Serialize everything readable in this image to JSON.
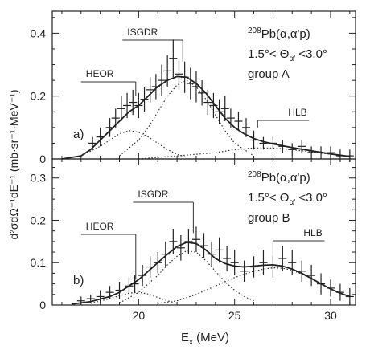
{
  "chart_data": [
    {
      "type": "line",
      "panel_label": "a)",
      "reaction": {
        "mass": "208",
        "text": "Pb(α,α'p)"
      },
      "angle_text": "1.5°< Θ",
      "angle_sub": "α'",
      "angle_tail": " <3.0°",
      "group_text": "group A",
      "xlim": [
        15.5,
        31.3
      ],
      "ylim": [
        0,
        0.47
      ],
      "x_ticks": [
        20,
        25,
        30
      ],
      "y_ticks": [
        0,
        0.2,
        0.4
      ],
      "y_tick_labels": [
        "0",
        "0.2",
        "0.4"
      ],
      "annotations": [
        {
          "label": "HEOR",
          "x": 19.85,
          "y_end": 0.2
        },
        {
          "label": "ISGDR",
          "x": 22.3,
          "y_end": 0.31
        },
        {
          "label": "HLB",
          "x": 26.2,
          "y_end": 0.1
        }
      ],
      "data_points": {
        "x": [
          17.6,
          18.0,
          18.5,
          18.8,
          19.1,
          19.4,
          19.7,
          20.0,
          20.3,
          20.6,
          20.9,
          21.2,
          21.5,
          21.8,
          22.1,
          22.4,
          22.7,
          23.0,
          23.3,
          23.6,
          23.9,
          24.2,
          24.5,
          24.8,
          25.2,
          25.6,
          26.0,
          26.5,
          27.0,
          27.5,
          28.0,
          28.5,
          29.0,
          29.5,
          30.0,
          30.5,
          31.0
        ],
        "y": [
          0.05,
          0.07,
          0.1,
          0.13,
          0.16,
          0.17,
          0.18,
          0.17,
          0.19,
          0.22,
          0.23,
          0.25,
          0.28,
          0.32,
          0.27,
          0.26,
          0.24,
          0.23,
          0.21,
          0.18,
          0.17,
          0.15,
          0.16,
          0.13,
          0.12,
          0.1,
          0.06,
          0.05,
          0.05,
          0.04,
          0.03,
          0.04,
          0.02,
          0.02,
          0.02,
          0.01,
          0.01
        ],
        "yerr": [
          0.02,
          0.03,
          0.03,
          0.03,
          0.04,
          0.04,
          0.04,
          0.04,
          0.04,
          0.04,
          0.04,
          0.05,
          0.05,
          0.06,
          0.05,
          0.05,
          0.05,
          0.05,
          0.04,
          0.04,
          0.04,
          0.04,
          0.04,
          0.03,
          0.03,
          0.03,
          0.03,
          0.02,
          0.02,
          0.02,
          0.02,
          0.02,
          0.02,
          0.02,
          0.02,
          0.02,
          0.02
        ]
      },
      "fit_curve": {
        "x": [
          16.0,
          17.0,
          17.5,
          18.0,
          18.5,
          19.0,
          19.5,
          20.0,
          20.5,
          21.0,
          21.5,
          22.0,
          22.5,
          23.0,
          23.5,
          24.0,
          24.5,
          25.0,
          25.5,
          26.0,
          26.5,
          27.0,
          28.0,
          29.0,
          30.0,
          31.0
        ],
        "y": [
          0.0,
          0.01,
          0.03,
          0.06,
          0.09,
          0.12,
          0.15,
          0.17,
          0.2,
          0.23,
          0.25,
          0.262,
          0.26,
          0.24,
          0.21,
          0.17,
          0.13,
          0.1,
          0.08,
          0.065,
          0.055,
          0.048,
          0.036,
          0.026,
          0.016,
          0.008
        ]
      },
      "components": [
        {
          "x": [
            17.0,
            18.0,
            18.5,
            19.0,
            19.5,
            20.0,
            20.5,
            21.0,
            21.5,
            22.0,
            22.5
          ],
          "y": [
            0.01,
            0.04,
            0.06,
            0.08,
            0.09,
            0.085,
            0.07,
            0.05,
            0.03,
            0.015,
            0.005
          ]
        },
        {
          "x": [
            19.0,
            20.0,
            20.5,
            21.0,
            21.5,
            22.0,
            22.5,
            23.0,
            23.5,
            24.0,
            24.5,
            25.0,
            26.0
          ],
          "y": [
            0.01,
            0.06,
            0.1,
            0.15,
            0.2,
            0.235,
            0.25,
            0.23,
            0.19,
            0.14,
            0.09,
            0.05,
            0.01
          ]
        },
        {
          "x": [
            20.0,
            22.0,
            24.0,
            25.0,
            26.0,
            27.0,
            28.0,
            29.0,
            30.0,
            31.0
          ],
          "y": [
            0.0,
            0.01,
            0.02,
            0.03,
            0.035,
            0.035,
            0.03,
            0.022,
            0.015,
            0.008
          ]
        }
      ]
    },
    {
      "type": "line",
      "panel_label": "b)",
      "reaction": {
        "mass": "208",
        "text": "Pb(α,α'p)"
      },
      "angle_text": "1.5°< Θ",
      "angle_sub": "α'",
      "angle_tail": " <3.0°",
      "group_text": "group B",
      "xlim": [
        15.5,
        31.3
      ],
      "ylim": [
        0,
        0.345
      ],
      "x_ticks": [
        20,
        25,
        30
      ],
      "y_ticks": [
        0,
        0.1,
        0.2,
        0.3
      ],
      "y_tick_labels": [
        "0",
        "0.1",
        "0.2",
        "0.3"
      ],
      "annotations": [
        {
          "label": "HEOR",
          "x": 19.85,
          "y_end": 0.06
        },
        {
          "label": "ISGDR",
          "x": 22.85,
          "y_end": 0.17
        },
        {
          "label": "HLB",
          "x": 27.0,
          "y_end": 0.11
        }
      ],
      "data_points": {
        "x": [
          17.0,
          17.5,
          18.0,
          18.5,
          19.0,
          19.5,
          19.8,
          20.2,
          20.6,
          21.0,
          21.4,
          21.8,
          22.2,
          22.6,
          23.0,
          23.4,
          23.8,
          24.2,
          24.6,
          25.0,
          25.5,
          26.0,
          26.5,
          27.0,
          27.5,
          28.0,
          28.5,
          29.0,
          29.5,
          30.0,
          30.5,
          31.0
        ],
        "y": [
          0.01,
          0.015,
          0.02,
          0.03,
          0.035,
          0.045,
          0.05,
          0.07,
          0.09,
          0.1,
          0.12,
          0.15,
          0.135,
          0.15,
          0.155,
          0.14,
          0.12,
          0.13,
          0.11,
          0.1,
          0.08,
          0.09,
          0.1,
          0.09,
          0.11,
          0.1,
          0.08,
          0.07,
          0.05,
          0.04,
          0.03,
          0.02
        ],
        "yerr": [
          0.01,
          0.01,
          0.015,
          0.015,
          0.02,
          0.02,
          0.02,
          0.025,
          0.025,
          0.025,
          0.03,
          0.03,
          0.03,
          0.03,
          0.03,
          0.03,
          0.03,
          0.03,
          0.03,
          0.03,
          0.025,
          0.025,
          0.03,
          0.025,
          0.03,
          0.03,
          0.025,
          0.025,
          0.025,
          0.02,
          0.02,
          0.02
        ]
      },
      "fit_curve": {
        "x": [
          16.5,
          17.5,
          18.5,
          19.0,
          19.5,
          20.0,
          20.5,
          21.0,
          21.5,
          22.0,
          22.5,
          23.0,
          23.5,
          24.0,
          24.5,
          25.0,
          25.5,
          26.0,
          26.5,
          27.0,
          27.5,
          28.0,
          28.5,
          29.0,
          29.5,
          30.0,
          30.5,
          31.0
        ],
        "y": [
          0.002,
          0.008,
          0.02,
          0.03,
          0.045,
          0.06,
          0.08,
          0.1,
          0.12,
          0.138,
          0.148,
          0.145,
          0.13,
          0.11,
          0.098,
          0.092,
          0.09,
          0.092,
          0.094,
          0.095,
          0.092,
          0.085,
          0.075,
          0.063,
          0.05,
          0.038,
          0.028,
          0.02
        ]
      },
      "components": [
        {
          "x": [
            17.5,
            18.5,
            19.0,
            19.5,
            20.0,
            20.5,
            21.0,
            21.5,
            22.0
          ],
          "y": [
            0.004,
            0.015,
            0.022,
            0.028,
            0.03,
            0.026,
            0.018,
            0.01,
            0.004
          ]
        },
        {
          "x": [
            19.0,
            20.0,
            20.5,
            21.0,
            21.5,
            22.0,
            22.5,
            23.0,
            23.5,
            24.0,
            24.5,
            25.0,
            25.5,
            26.0
          ],
          "y": [
            0.005,
            0.03,
            0.05,
            0.07,
            0.095,
            0.115,
            0.128,
            0.125,
            0.105,
            0.08,
            0.055,
            0.035,
            0.02,
            0.01
          ]
        },
        {
          "x": [
            21.0,
            22.0,
            23.0,
            24.0,
            25.0,
            26.0,
            26.5,
            27.0,
            27.5,
            28.0,
            28.5,
            29.0,
            29.5,
            30.0,
            31.0
          ],
          "y": [
            0.004,
            0.01,
            0.025,
            0.045,
            0.065,
            0.08,
            0.085,
            0.088,
            0.087,
            0.082,
            0.073,
            0.062,
            0.05,
            0.038,
            0.02
          ]
        }
      ]
    }
  ],
  "y_axis_label": "d²σdΩ⁻¹dE⁻¹ (mb·sr⁻¹·MeV⁻¹)",
  "x_axis_label": "E",
  "x_axis_label_sub": "x",
  "x_axis_label_tail": " (MeV)"
}
